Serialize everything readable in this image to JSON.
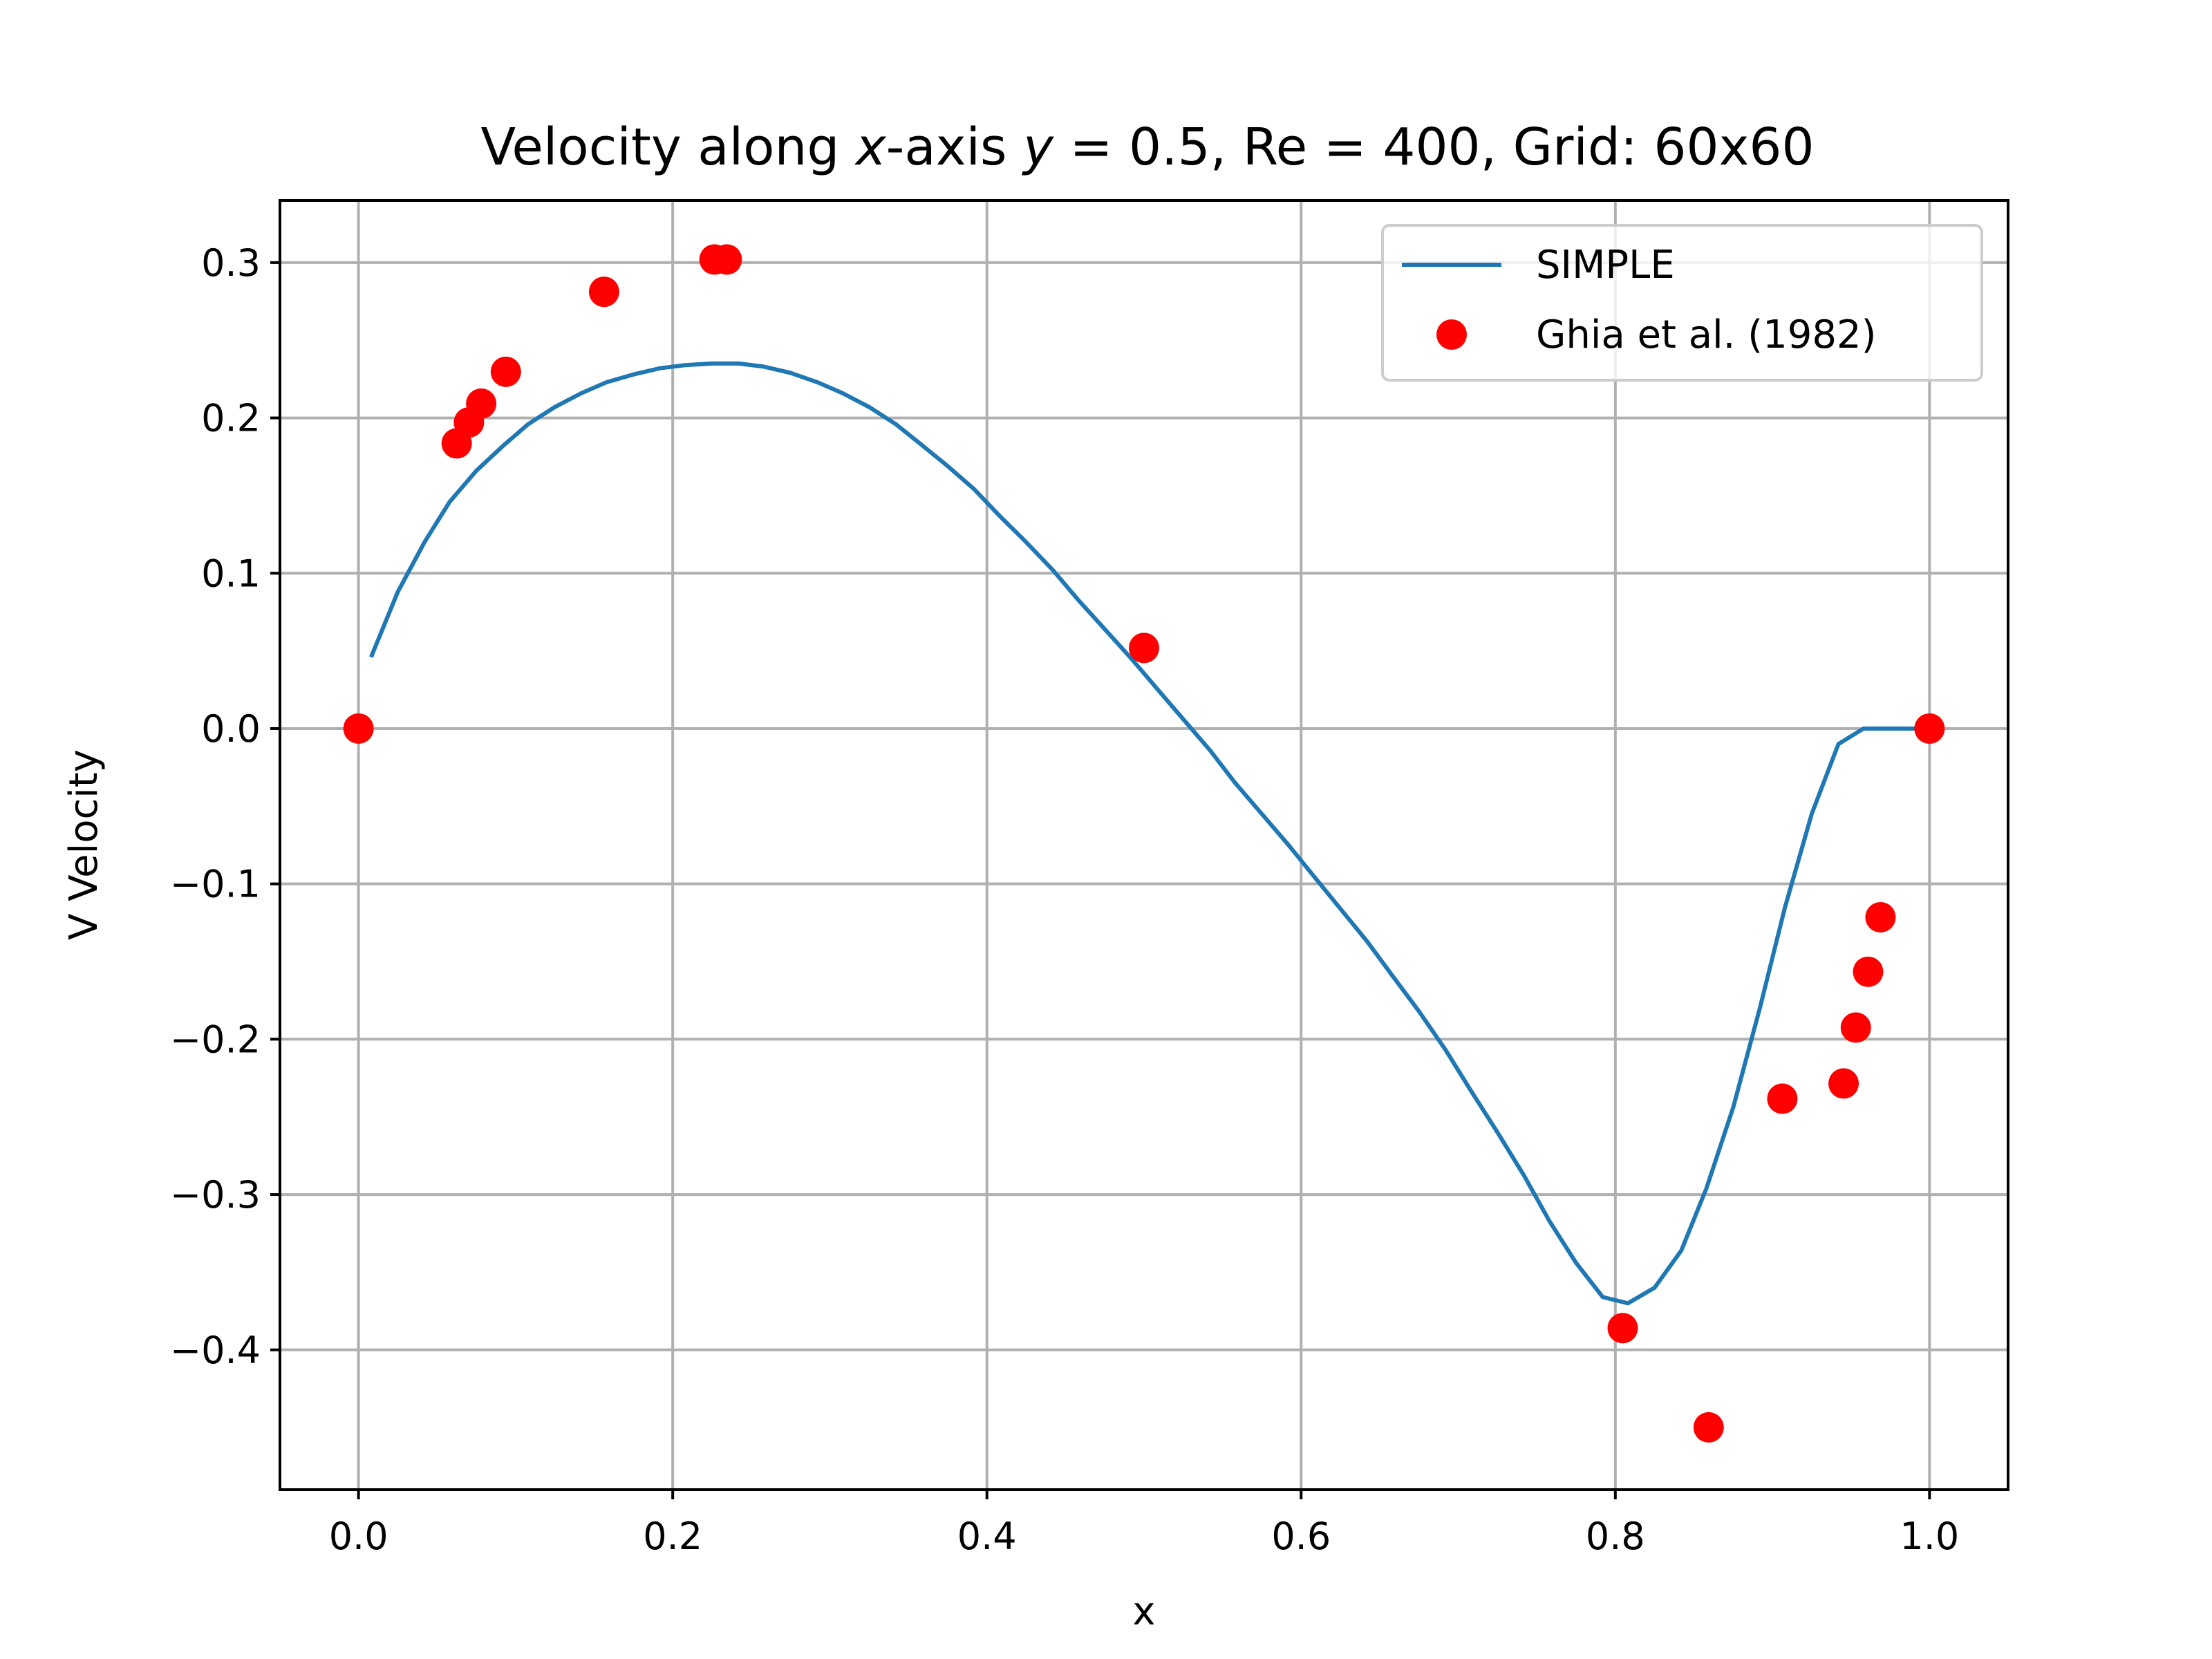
{
  "chart_data": {
    "type": "line",
    "title_parts": [
      "Velocity along ",
      "x",
      "-axis ",
      "y",
      " = 0.5, Re = 400, Grid: 60x60"
    ],
    "xlabel": "x",
    "ylabel": "V Velocity",
    "xlim": [
      -0.05,
      1.05
    ],
    "ylim": [
      -0.49,
      0.34
    ],
    "xticks": [
      0.0,
      0.2,
      0.4,
      0.6,
      0.8,
      1.0
    ],
    "xtick_labels": [
      "0.0",
      "0.2",
      "0.4",
      "0.6",
      "0.8",
      "1.0"
    ],
    "yticks": [
      0.3,
      0.2,
      0.1,
      0.0,
      -0.1,
      -0.2,
      -0.3,
      -0.4
    ],
    "ytick_labels": [
      "0.3",
      "0.2",
      "0.1",
      "0.0",
      "−0.1",
      "−0.2",
      "−0.3",
      "−0.4"
    ],
    "grid": true,
    "legend_position": "top-right",
    "series": [
      {
        "name": "SIMPLE",
        "kind": "line",
        "color": "#1f77b4",
        "x": [
          0.008,
          0.025,
          0.042,
          0.058,
          0.075,
          0.092,
          0.108,
          0.125,
          0.142,
          0.158,
          0.175,
          0.192,
          0.208,
          0.225,
          0.242,
          0.258,
          0.275,
          0.292,
          0.308,
          0.325,
          0.342,
          0.358,
          0.375,
          0.392,
          0.408,
          0.425,
          0.442,
          0.458,
          0.475,
          0.492,
          0.508,
          0.525,
          0.542,
          0.558,
          0.575,
          0.592,
          0.608,
          0.625,
          0.642,
          0.658,
          0.675,
          0.692,
          0.708,
          0.725,
          0.742,
          0.758,
          0.775,
          0.792,
          0.808,
          0.825,
          0.842,
          0.858,
          0.875,
          0.892,
          0.908,
          0.925,
          0.942,
          0.958,
          0.975,
          0.992
        ],
        "y": [
          0.046,
          0.088,
          0.12,
          0.146,
          0.166,
          0.182,
          0.196,
          0.207,
          0.216,
          0.223,
          0.228,
          0.232,
          0.234,
          0.235,
          0.235,
          0.233,
          0.229,
          0.223,
          0.216,
          0.207,
          0.196,
          0.183,
          0.169,
          0.154,
          0.137,
          0.12,
          0.102,
          0.083,
          0.064,
          0.045,
          0.026,
          0.006,
          -0.014,
          -0.035,
          -0.055,
          -0.075,
          -0.095,
          -0.116,
          -0.137,
          -0.159,
          -0.182,
          -0.207,
          -0.233,
          -0.26,
          -0.288,
          -0.317,
          -0.344,
          -0.366,
          -0.37,
          -0.36,
          -0.336,
          -0.296,
          -0.244,
          -0.18,
          -0.115,
          -0.055,
          -0.01,
          0.0,
          0.0,
          0.0
        ]
      },
      {
        "name": "Ghia et al. (1982)",
        "kind": "scatter",
        "color": "#ff0000",
        "x": [
          0.0,
          0.0625,
          0.0703,
          0.0781,
          0.0938,
          0.1563,
          0.2266,
          0.2344,
          0.5,
          0.8047,
          0.8594,
          0.9063,
          0.9453,
          0.9531,
          0.9609,
          0.9688,
          1.0
        ],
        "y": [
          0.0,
          0.1836,
          0.1971,
          0.2092,
          0.2297,
          0.2812,
          0.302,
          0.302,
          0.0519,
          -0.386,
          -0.4499,
          -0.2383,
          -0.2285,
          -0.1925,
          -0.1566,
          -0.1215,
          0.0
        ]
      }
    ]
  }
}
